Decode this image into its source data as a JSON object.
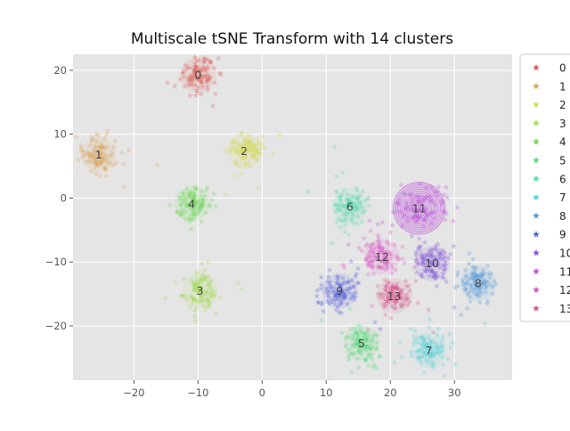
{
  "chart_data": {
    "type": "scatter",
    "title": "Multiscale tSNE Transform with 14 clusters",
    "xlabel": "",
    "ylabel": "",
    "xlim": [
      -29.5,
      39
    ],
    "ylim": [
      -28.5,
      22.5
    ],
    "xticks": [
      -20,
      -10,
      0,
      10,
      20,
      30
    ],
    "yticks": [
      -20,
      -10,
      0,
      10,
      20
    ],
    "xtick_labels": [
      "−20",
      "−10",
      "0",
      "10",
      "20",
      "30"
    ],
    "ytick_labels": [
      "−20",
      "−10",
      "0",
      "10",
      "20"
    ],
    "grid": true,
    "legend_position": "right",
    "legend_marker": "star",
    "clusters": [
      {
        "label": "0",
        "x": -10,
        "y": 19.3,
        "color": "#db5f57"
      },
      {
        "label": "1",
        "x": -25.5,
        "y": 6.8,
        "color": "#dba157"
      },
      {
        "label": "2",
        "x": -2.8,
        "y": 7.4,
        "color": "#d3db57"
      },
      {
        "label": "3",
        "x": -9.7,
        "y": -14.5,
        "color": "#a6db57"
      },
      {
        "label": "4",
        "x": -11,
        "y": -0.9,
        "color": "#6fdb57"
      },
      {
        "label": "5",
        "x": 15.5,
        "y": -22.7,
        "color": "#57db7a"
      },
      {
        "label": "6",
        "x": 13.7,
        "y": -1.3,
        "color": "#57dbb0"
      },
      {
        "label": "7",
        "x": 26,
        "y": -23.8,
        "color": "#57d3db"
      },
      {
        "label": "8",
        "x": 33.7,
        "y": -13.3,
        "color": "#579ddb"
      },
      {
        "label": "9",
        "x": 12.1,
        "y": -14.5,
        "color": "#5764db"
      },
      {
        "label": "10",
        "x": 26.5,
        "y": -10.2,
        "color": "#8457db"
      },
      {
        "label": "11",
        "x": 24.5,
        "y": -1.6,
        "color": "#bd57db"
      },
      {
        "label": "12",
        "x": 18.7,
        "y": -9.2,
        "color": "#db57c6"
      },
      {
        "label": "13",
        "x": 20.6,
        "y": -15.3,
        "color": "#db578d"
      }
    ]
  }
}
